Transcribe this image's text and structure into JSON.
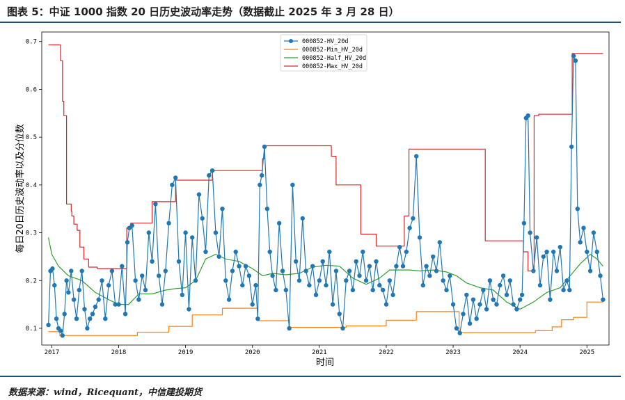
{
  "header": {
    "title": "图表 5：中证 1000 指数 20 日历史波动率走势（数据截止 2025 年 3 月 28 日）"
  },
  "footer": {
    "source": "数据来源：wind，Ricequant，中信建投期货"
  },
  "chart_data": {
    "type": "line",
    "xlabel": "时间",
    "ylabel": "每日20日历史波动率以及分位数",
    "xlim": [
      2016.85,
      2025.33
    ],
    "ylim": [
      0.065,
      0.72
    ],
    "x_ticks": [
      2017,
      2018,
      2019,
      2020,
      2021,
      2022,
      2023,
      2024,
      2025
    ],
    "x_tick_labels": [
      "2017",
      "2018",
      "2019",
      "2020",
      "2021",
      "2022",
      "2023",
      "2024",
      "2025"
    ],
    "y_ticks": [
      0.1,
      0.2,
      0.3,
      0.4,
      0.5,
      0.6,
      0.7
    ],
    "y_tick_labels": [
      "0.1",
      "0.2",
      "0.3",
      "0.4",
      "0.5",
      "0.6",
      "0.7"
    ],
    "legend_position": "top-center",
    "series": [
      {
        "name": "000852-HV_20d",
        "color": "#1f77b4",
        "markers": true,
        "x": [
          2016.95,
          2016.98,
          2017.01,
          2017.04,
          2017.07,
          2017.1,
          2017.13,
          2017.16,
          2017.19,
          2017.22,
          2017.25,
          2017.29,
          2017.33,
          2017.37,
          2017.41,
          2017.45,
          2017.49,
          2017.53,
          2017.57,
          2017.61,
          2017.65,
          2017.7,
          2017.75,
          2017.8,
          2017.85,
          2017.9,
          2017.95,
          2018.0,
          2018.05,
          2018.1,
          2018.13,
          2018.16,
          2018.2,
          2018.25,
          2018.3,
          2018.35,
          2018.4,
          2018.45,
          2018.5,
          2018.55,
          2018.6,
          2018.65,
          2018.7,
          2018.75,
          2018.8,
          2018.85,
          2018.9,
          2018.95,
          2019.0,
          2019.05,
          2019.1,
          2019.15,
          2019.2,
          2019.25,
          2019.3,
          2019.35,
          2019.4,
          2019.45,
          2019.5,
          2019.55,
          2019.6,
          2019.65,
          2019.7,
          2019.75,
          2019.8,
          2019.85,
          2019.9,
          2019.95,
          2020.0,
          2020.05,
          2020.08,
          2020.11,
          2020.14,
          2020.18,
          2020.22,
          2020.26,
          2020.3,
          2020.35,
          2020.4,
          2020.45,
          2020.5,
          2020.55,
          2020.6,
          2020.65,
          2020.7,
          2020.75,
          2020.8,
          2020.85,
          2020.9,
          2020.95,
          2021.0,
          2021.05,
          2021.1,
          2021.15,
          2021.2,
          2021.25,
          2021.3,
          2021.35,
          2021.4,
          2021.45,
          2021.5,
          2021.55,
          2021.6,
          2021.65,
          2021.7,
          2021.75,
          2021.8,
          2021.85,
          2021.9,
          2021.95,
          2022.0,
          2022.05,
          2022.1,
          2022.15,
          2022.2,
          2022.25,
          2022.3,
          2022.35,
          2022.4,
          2022.45,
          2022.5,
          2022.55,
          2022.6,
          2022.65,
          2022.7,
          2022.75,
          2022.8,
          2022.85,
          2022.9,
          2022.95,
          2023.0,
          2023.05,
          2023.1,
          2023.15,
          2023.2,
          2023.25,
          2023.3,
          2023.35,
          2023.4,
          2023.45,
          2023.5,
          2023.55,
          2023.6,
          2023.65,
          2023.7,
          2023.75,
          2023.8,
          2023.85,
          2023.9,
          2023.95,
          2024.0,
          2024.03,
          2024.06,
          2024.09,
          2024.12,
          2024.15,
          2024.2,
          2024.25,
          2024.3,
          2024.35,
          2024.4,
          2024.45,
          2024.5,
          2024.55,
          2024.6,
          2024.65,
          2024.7,
          2024.74,
          2024.77,
          2024.8,
          2024.83,
          2024.86,
          2024.9,
          2024.95,
          2025.0,
          2025.05,
          2025.1,
          2025.15,
          2025.2,
          2025.24
        ],
        "y": [
          0.107,
          0.22,
          0.225,
          0.19,
          0.12,
          0.1,
          0.095,
          0.085,
          0.13,
          0.2,
          0.175,
          0.22,
          0.16,
          0.12,
          0.18,
          0.22,
          0.14,
          0.1,
          0.12,
          0.13,
          0.145,
          0.16,
          0.2,
          0.12,
          0.19,
          0.22,
          0.15,
          0.15,
          0.23,
          0.13,
          0.28,
          0.31,
          0.315,
          0.2,
          0.16,
          0.21,
          0.18,
          0.3,
          0.24,
          0.36,
          0.21,
          0.15,
          0.22,
          0.32,
          0.4,
          0.415,
          0.24,
          0.17,
          0.3,
          0.14,
          0.29,
          0.2,
          0.38,
          0.33,
          0.26,
          0.42,
          0.43,
          0.3,
          0.25,
          0.35,
          0.2,
          0.16,
          0.22,
          0.26,
          0.23,
          0.19,
          0.23,
          0.21,
          0.15,
          0.19,
          0.12,
          0.4,
          0.42,
          0.48,
          0.35,
          0.26,
          0.21,
          0.18,
          0.32,
          0.22,
          0.18,
          0.1,
          0.4,
          0.24,
          0.2,
          0.33,
          0.22,
          0.19,
          0.23,
          0.17,
          0.2,
          0.24,
          0.19,
          0.26,
          0.15,
          0.22,
          0.13,
          0.1,
          0.2,
          0.22,
          0.18,
          0.24,
          0.21,
          0.26,
          0.2,
          0.23,
          0.18,
          0.24,
          0.19,
          0.18,
          0.15,
          0.2,
          0.17,
          0.23,
          0.27,
          0.23,
          0.26,
          0.31,
          0.33,
          0.46,
          0.29,
          0.19,
          0.23,
          0.21,
          0.25,
          0.22,
          0.28,
          0.2,
          0.18,
          0.21,
          0.15,
          0.1,
          0.09,
          0.13,
          0.17,
          0.11,
          0.16,
          0.12,
          0.15,
          0.18,
          0.14,
          0.2,
          0.16,
          0.15,
          0.19,
          0.21,
          0.17,
          0.2,
          0.15,
          0.14,
          0.16,
          0.17,
          0.32,
          0.54,
          0.545,
          0.3,
          0.22,
          0.29,
          0.19,
          0.25,
          0.26,
          0.16,
          0.26,
          0.22,
          0.27,
          0.18,
          0.2,
          0.18,
          0.48,
          0.67,
          0.66,
          0.35,
          0.28,
          0.31,
          0.26,
          0.22,
          0.3,
          0.26,
          0.21,
          0.16
        ]
      },
      {
        "name": "000852-Min_HV_20d",
        "color": "#ff7f0e",
        "x": [
          2016.95,
          2017.12,
          2017.12,
          2018.28,
          2018.28,
          2018.75,
          2018.75,
          2019.1,
          2019.1,
          2019.55,
          2019.55,
          2020.08,
          2020.08,
          2020.55,
          2020.55,
          2021.4,
          2021.4,
          2022.0,
          2022.0,
          2022.45,
          2022.45,
          2023.09,
          2023.09,
          2024.23,
          2024.23,
          2024.48,
          2024.48,
          2024.62,
          2024.62,
          2024.8,
          2024.8,
          2025.0,
          2025.0,
          2025.24
        ],
        "y": [
          0.093,
          0.093,
          0.085,
          0.085,
          0.092,
          0.092,
          0.104,
          0.104,
          0.128,
          0.128,
          0.142,
          0.142,
          0.116,
          0.116,
          0.102,
          0.102,
          0.105,
          0.105,
          0.117,
          0.117,
          0.135,
          0.135,
          0.091,
          0.091,
          0.095,
          0.095,
          0.103,
          0.103,
          0.118,
          0.118,
          0.123,
          0.123,
          0.155,
          0.155
        ]
      },
      {
        "name": "000852-Half_HV_20d",
        "color": "#2ca02c",
        "x": [
          2016.95,
          2017.0,
          2017.1,
          2017.25,
          2017.45,
          2017.65,
          2017.85,
          2018.0,
          2018.15,
          2018.3,
          2018.5,
          2018.7,
          2018.85,
          2019.0,
          2019.15,
          2019.3,
          2019.45,
          2019.6,
          2019.8,
          2020.0,
          2020.15,
          2020.3,
          2020.5,
          2020.7,
          2020.9,
          2021.1,
          2021.3,
          2021.5,
          2021.7,
          2021.9,
          2022.05,
          2022.2,
          2022.35,
          2022.5,
          2022.7,
          2022.9,
          2023.05,
          2023.2,
          2023.4,
          2023.6,
          2023.8,
          2024.0,
          2024.2,
          2024.4,
          2024.6,
          2024.75,
          2024.9,
          2025.05,
          2025.15,
          2025.24
        ],
        "y": [
          0.29,
          0.255,
          0.23,
          0.21,
          0.2,
          0.175,
          0.16,
          0.15,
          0.15,
          0.172,
          0.172,
          0.18,
          0.183,
          0.185,
          0.2,
          0.245,
          0.255,
          0.245,
          0.24,
          0.225,
          0.21,
          0.215,
          0.212,
          0.215,
          0.228,
          0.232,
          0.23,
          0.205,
          0.192,
          0.205,
          0.222,
          0.222,
          0.222,
          0.22,
          0.222,
          0.218,
          0.21,
          0.195,
          0.185,
          0.18,
          0.155,
          0.14,
          0.155,
          0.175,
          0.185,
          0.21,
          0.235,
          0.255,
          0.245,
          0.23
        ]
      },
      {
        "name": "000852-Max_HV_20d",
        "color": "#d62728",
        "x": [
          2016.95,
          2017.13,
          2017.13,
          2017.16,
          2017.16,
          2017.18,
          2017.18,
          2017.22,
          2017.22,
          2017.29,
          2017.29,
          2017.3,
          2017.3,
          2017.33,
          2017.33,
          2017.38,
          2017.38,
          2017.42,
          2017.42,
          2017.48,
          2017.48,
          2017.55,
          2017.55,
          2017.68,
          2017.68,
          2018.12,
          2018.12,
          2018.18,
          2018.18,
          2018.5,
          2018.5,
          2018.85,
          2018.85,
          2019.4,
          2019.4,
          2020.15,
          2020.15,
          2020.18,
          2020.18,
          2021.18,
          2021.18,
          2021.25,
          2021.25,
          2021.62,
          2021.62,
          2021.85,
          2021.85,
          2022.27,
          2022.27,
          2022.34,
          2022.34,
          2023.48,
          2023.48,
          2024.05,
          2024.05,
          2024.12,
          2024.12,
          2024.21,
          2024.21,
          2024.28,
          2024.28,
          2024.78,
          2024.78,
          2025.24
        ],
        "y": [
          0.693,
          0.693,
          0.66,
          0.66,
          0.575,
          0.575,
          0.545,
          0.545,
          0.36,
          0.36,
          0.345,
          0.345,
          0.335,
          0.335,
          0.318,
          0.318,
          0.305,
          0.305,
          0.27,
          0.27,
          0.245,
          0.245,
          0.228,
          0.228,
          0.225,
          0.225,
          0.31,
          0.31,
          0.32,
          0.32,
          0.365,
          0.365,
          0.41,
          0.41,
          0.43,
          0.43,
          0.455,
          0.455,
          0.482,
          0.482,
          0.46,
          0.46,
          0.4,
          0.4,
          0.297,
          0.297,
          0.272,
          0.272,
          0.335,
          0.335,
          0.475,
          0.475,
          0.283,
          0.283,
          0.26,
          0.26,
          0.22,
          0.22,
          0.545,
          0.545,
          0.548,
          0.548,
          0.675,
          0.675
        ]
      }
    ]
  }
}
